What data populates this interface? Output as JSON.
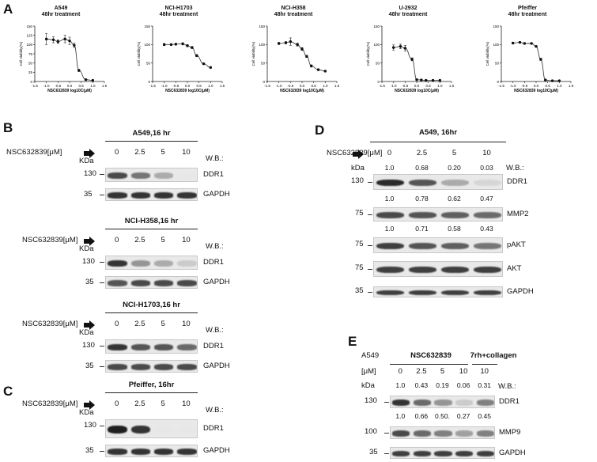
{
  "panels": {
    "a": "A",
    "b": "B",
    "c": "C",
    "d": "D",
    "e": "E"
  },
  "chart_data": [
    {
      "type": "scatter",
      "title": "A549\n48hr treatment",
      "title_lines": [
        "A549",
        "48hr treatment"
      ],
      "xlabel": "NSC632839 log10C(μM)",
      "ylabel": "Cell viability(%)",
      "xlim": [
        -1.5,
        1.5
      ],
      "ylim": [
        0,
        150
      ],
      "xticks": [
        "-1.5",
        "-1.0",
        "-0.5",
        "0.0",
        "0.5",
        "1.0",
        "1.5"
      ],
      "yticks": [
        "0",
        "25",
        "50",
        "75",
        "100",
        "125",
        "150"
      ],
      "x": [
        -1.0,
        -0.7,
        -0.5,
        -0.2,
        0.0,
        0.2,
        0.4,
        0.7,
        1.0
      ],
      "y": [
        115,
        113,
        108,
        115,
        110,
        98,
        30,
        5,
        3
      ],
      "err": [
        15,
        8,
        5,
        10,
        10,
        6,
        3,
        2,
        1
      ],
      "fit": true
    },
    {
      "type": "scatter",
      "title_lines": [
        "NCI-H1703",
        "48hr treatment"
      ],
      "xlabel": "NSC632839 log10C(μM)",
      "ylabel": "Cell viability(%)",
      "xlim": [
        -1.5,
        1.5
      ],
      "ylim": [
        0,
        150
      ],
      "xticks": [
        "-1.5",
        "-1.0",
        "-0.5",
        "0.0",
        "0.5",
        "1.0",
        "1.5"
      ],
      "yticks": [
        "0",
        "50",
        "100",
        "150"
      ],
      "x": [
        -1.0,
        -0.7,
        -0.5,
        -0.2,
        0.0,
        0.2,
        0.4,
        0.7,
        1.0
      ],
      "y": [
        100,
        100,
        101,
        102,
        97,
        92,
        70,
        48,
        38
      ],
      "err": [
        3,
        2,
        2,
        3,
        3,
        3,
        3,
        2,
        2
      ],
      "fit": true
    },
    {
      "type": "scatter",
      "title_lines": [
        "NCI-H358",
        "48hr treatment"
      ],
      "xlabel": "NSC632839 log10C(μM)",
      "ylabel": "Cell viability(%)",
      "xlim": [
        -1.5,
        1.5
      ],
      "ylim": [
        0,
        150
      ],
      "xticks": [
        "-1.5",
        "-1.0",
        "-0.5",
        "0.0",
        "0.5",
        "1.0",
        "1.5"
      ],
      "yticks": [
        "0",
        "50",
        "100",
        "150"
      ],
      "x": [
        -1.0,
        -0.7,
        -0.5,
        -0.2,
        0.0,
        0.2,
        0.4,
        0.7,
        1.0
      ],
      "y": [
        103,
        105,
        108,
        100,
        88,
        68,
        42,
        32,
        28
      ],
      "err": [
        3,
        3,
        10,
        4,
        4,
        3,
        3,
        2,
        2
      ],
      "fit": true
    },
    {
      "type": "scatter",
      "title_lines": [
        "U-2932",
        "48hr treatment"
      ],
      "xlabel": "NSC632839 log10C(μM)",
      "ylabel": "Cell viability(%)",
      "xlim": [
        -1.5,
        1.5
      ],
      "ylim": [
        0,
        150
      ],
      "xticks": [
        "-1.5",
        "-1.0",
        "-0.5",
        "0.0",
        "0.5",
        "1.0",
        "1.5"
      ],
      "yticks": [
        "0",
        "50",
        "100",
        "150"
      ],
      "x": [
        -1.0,
        -0.7,
        -0.5,
        -0.2,
        0.0,
        0.2,
        0.4,
        0.7,
        1.0
      ],
      "y": [
        92,
        95,
        90,
        60,
        5,
        4,
        3,
        3,
        3
      ],
      "err": [
        7,
        6,
        8,
        4,
        2,
        1,
        1,
        1,
        1
      ],
      "fit": true
    },
    {
      "type": "scatter",
      "title_lines": [
        "Pfeiffer",
        "48hr treatment"
      ],
      "xlabel": "NSC632839 log10C(μM)",
      "ylabel": "Cell viability(%)",
      "xlim": [
        -1.5,
        1.5
      ],
      "ylim": [
        0,
        150
      ],
      "xticks": [
        "-1.5",
        "-1.0",
        "-0.5",
        "0.0",
        "0.5",
        "1.0",
        "1.5"
      ],
      "yticks": [
        "0",
        "50",
        "100",
        "150"
      ],
      "x": [
        -1.0,
        -0.7,
        -0.5,
        -0.2,
        0.0,
        0.2,
        0.4,
        0.7,
        1.0
      ],
      "y": [
        104,
        106,
        103,
        103,
        95,
        60,
        4,
        2,
        2
      ],
      "err": [
        2,
        2,
        2,
        2,
        2,
        3,
        1,
        1,
        1
      ],
      "fit": true
    }
  ],
  "b": {
    "treatment": "NSC632839[μM]",
    "doses": [
      "0",
      "2.5",
      "5",
      "10"
    ],
    "wb": "W.B.:",
    "kda": "KDa",
    "blots": [
      {
        "title": "A549,16 hr",
        "rows": [
          {
            "mw": "130",
            "protein": "DDR1",
            "intensity": [
              0.75,
              0.55,
              0.3,
              0.02
            ]
          },
          {
            "mw": "35",
            "protein": "GAPDH",
            "intensity": [
              0.85,
              0.85,
              0.85,
              0.85
            ]
          }
        ]
      },
      {
        "title": "NCI-H358,16 hr",
        "rows": [
          {
            "mw": "130",
            "protein": "DDR1",
            "intensity": [
              0.85,
              0.4,
              0.3,
              0.15
            ]
          },
          {
            "mw": "35",
            "protein": "GAPDH",
            "intensity": [
              0.7,
              0.75,
              0.75,
              0.75
            ]
          }
        ]
      },
      {
        "title": "NCI-H1703,16 hr",
        "rows": [
          {
            "mw": "130",
            "protein": "DDR1",
            "intensity": [
              0.85,
              0.7,
              0.7,
              0.6
            ]
          },
          {
            "mw": "35",
            "protein": "GAPDH",
            "intensity": [
              0.75,
              0.75,
              0.75,
              0.75
            ]
          }
        ]
      }
    ]
  },
  "c": {
    "treatment": "NSC632839[μM]",
    "doses": [
      "0",
      "2.5",
      "5",
      "10"
    ],
    "wb": "W.B.:",
    "kda": "KDa",
    "title": "Pfeiffer, 16hr",
    "rows": [
      {
        "mw": "130",
        "protein": "DDR1",
        "intensity": [
          0.95,
          0.85,
          0.02,
          0.02
        ]
      },
      {
        "mw": "35",
        "protein": "GAPDH",
        "intensity": [
          0.85,
          0.85,
          0.85,
          0.85
        ]
      }
    ]
  },
  "d": {
    "title": "A549, 16hr",
    "treatment": "NSC632839[μM]",
    "doses": [
      "0",
      "2.5",
      "5",
      "10"
    ],
    "kda": "kDa",
    "wb": "W.B.:",
    "rows": [
      {
        "quant": [
          "1.0",
          "0.68",
          "0.20",
          "0.03"
        ],
        "mw": "130",
        "protein": "DDR1",
        "intensity": [
          0.9,
          0.7,
          0.3,
          0.1
        ]
      },
      {
        "quant": [
          "1.0",
          "0.78",
          "0.62",
          "0.47"
        ],
        "mw": "75",
        "protein": "MMP2",
        "intensity": [
          0.75,
          0.7,
          0.65,
          0.6
        ]
      },
      {
        "quant": [
          "1.0",
          "0.71",
          "0.58",
          "0.43"
        ],
        "mw": "75",
        "protein": "pAKT",
        "intensity": [
          0.8,
          0.7,
          0.65,
          0.55
        ]
      },
      {
        "quant": [],
        "mw": "75",
        "protein": "AKT",
        "intensity": [
          0.8,
          0.8,
          0.8,
          0.8
        ]
      },
      {
        "quant": [],
        "mw": "35",
        "protein": "GAPDH",
        "intensity": [
          0.8,
          0.8,
          0.8,
          0.8
        ]
      }
    ]
  },
  "e": {
    "cell": "A549",
    "group1": "NSC632839",
    "group2": "7rh+collagen",
    "unit": "[μM]",
    "doses": [
      "0",
      "2.5",
      "5",
      "10",
      "10"
    ],
    "kda": "kDa",
    "wb": "W.B.:",
    "rows": [
      {
        "quant": [
          "1.0",
          "0.43",
          "0.19",
          "0.06",
          "0.31"
        ],
        "mw": "130",
        "protein": "DDR1",
        "intensity": [
          0.85,
          0.6,
          0.4,
          0.15,
          0.5
        ]
      },
      {
        "quant": [
          "1.0",
          "0.66",
          "0.50.",
          "0.27",
          "0.45"
        ],
        "mw": "100",
        "protein": "MMP9",
        "intensity": [
          0.75,
          0.6,
          0.5,
          0.35,
          0.5
        ]
      },
      {
        "quant": [],
        "mw": "35",
        "protein": "GAPDH",
        "intensity": [
          0.8,
          0.8,
          0.8,
          0.8,
          0.8
        ]
      }
    ]
  }
}
